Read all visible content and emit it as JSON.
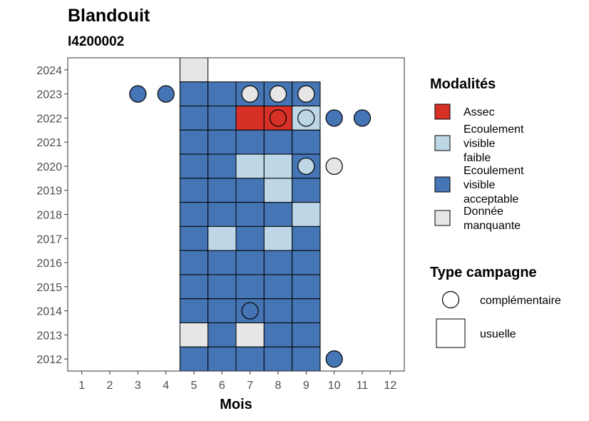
{
  "chart_data": {
    "type": "heatmap",
    "title": "Blandouit",
    "subtitle": "I4200002",
    "xlabel": "Mois",
    "ylabel": "",
    "x_ticks": [
      1,
      2,
      3,
      4,
      5,
      6,
      7,
      8,
      9,
      10,
      11,
      12
    ],
    "y_ticks": [
      2012,
      2013,
      2014,
      2015,
      2016,
      2017,
      2018,
      2019,
      2020,
      2021,
      2022,
      2023,
      2024
    ],
    "xlim": [
      0.5,
      12.5
    ],
    "ylim": [
      2011.5,
      2024.5
    ],
    "colors": {
      "assec": "#d73027",
      "faible": "#bdd7e7",
      "acceptable": "#4575b4",
      "manquante": "#e6e6e6"
    },
    "legend_modalites": {
      "title": "Modalités",
      "items": [
        {
          "key": "assec",
          "lines": [
            "Assec"
          ]
        },
        {
          "key": "faible",
          "lines": [
            "Ecoulement",
            "visible",
            "faible"
          ]
        },
        {
          "key": "acceptable",
          "lines": [
            "Ecoulement",
            "visible",
            "acceptable"
          ]
        },
        {
          "key": "manquante",
          "lines": [
            "Donnée",
            "manquante"
          ]
        }
      ]
    },
    "legend_campagne": {
      "title": "Type campagne",
      "items": [
        {
          "shape": "circle",
          "label": "complémentaire"
        },
        {
          "shape": "square",
          "label": "usuelle"
        }
      ]
    },
    "usuelle": [
      {
        "year": 2024,
        "month": 5,
        "status": "manquante"
      },
      {
        "year": 2023,
        "month": 5,
        "status": "acceptable"
      },
      {
        "year": 2023,
        "month": 6,
        "status": "acceptable"
      },
      {
        "year": 2023,
        "month": 7,
        "status": "acceptable"
      },
      {
        "year": 2023,
        "month": 8,
        "status": "acceptable"
      },
      {
        "year": 2023,
        "month": 9,
        "status": "acceptable"
      },
      {
        "year": 2022,
        "month": 5,
        "status": "acceptable"
      },
      {
        "year": 2022,
        "month": 6,
        "status": "acceptable"
      },
      {
        "year": 2022,
        "month": 7,
        "status": "assec"
      },
      {
        "year": 2022,
        "month": 8,
        "status": "assec"
      },
      {
        "year": 2022,
        "month": 9,
        "status": "faible"
      },
      {
        "year": 2021,
        "month": 5,
        "status": "acceptable"
      },
      {
        "year": 2021,
        "month": 6,
        "status": "acceptable"
      },
      {
        "year": 2021,
        "month": 7,
        "status": "acceptable"
      },
      {
        "year": 2021,
        "month": 8,
        "status": "acceptable"
      },
      {
        "year": 2021,
        "month": 9,
        "status": "acceptable"
      },
      {
        "year": 2020,
        "month": 5,
        "status": "acceptable"
      },
      {
        "year": 2020,
        "month": 6,
        "status": "acceptable"
      },
      {
        "year": 2020,
        "month": 7,
        "status": "faible"
      },
      {
        "year": 2020,
        "month": 8,
        "status": "faible"
      },
      {
        "year": 2020,
        "month": 9,
        "status": "acceptable"
      },
      {
        "year": 2019,
        "month": 5,
        "status": "acceptable"
      },
      {
        "year": 2019,
        "month": 6,
        "status": "acceptable"
      },
      {
        "year": 2019,
        "month": 7,
        "status": "acceptable"
      },
      {
        "year": 2019,
        "month": 8,
        "status": "faible"
      },
      {
        "year": 2019,
        "month": 9,
        "status": "acceptable"
      },
      {
        "year": 2018,
        "month": 5,
        "status": "acceptable"
      },
      {
        "year": 2018,
        "month": 6,
        "status": "acceptable"
      },
      {
        "year": 2018,
        "month": 7,
        "status": "acceptable"
      },
      {
        "year": 2018,
        "month": 8,
        "status": "acceptable"
      },
      {
        "year": 2018,
        "month": 9,
        "status": "faible"
      },
      {
        "year": 2017,
        "month": 5,
        "status": "acceptable"
      },
      {
        "year": 2017,
        "month": 6,
        "status": "faible"
      },
      {
        "year": 2017,
        "month": 7,
        "status": "acceptable"
      },
      {
        "year": 2017,
        "month": 8,
        "status": "faible"
      },
      {
        "year": 2017,
        "month": 9,
        "status": "acceptable"
      },
      {
        "year": 2016,
        "month": 5,
        "status": "acceptable"
      },
      {
        "year": 2016,
        "month": 6,
        "status": "acceptable"
      },
      {
        "year": 2016,
        "month": 7,
        "status": "acceptable"
      },
      {
        "year": 2016,
        "month": 8,
        "status": "acceptable"
      },
      {
        "year": 2016,
        "month": 9,
        "status": "acceptable"
      },
      {
        "year": 2015,
        "month": 5,
        "status": "acceptable"
      },
      {
        "year": 2015,
        "month": 6,
        "status": "acceptable"
      },
      {
        "year": 2015,
        "month": 7,
        "status": "acceptable"
      },
      {
        "year": 2015,
        "month": 8,
        "status": "acceptable"
      },
      {
        "year": 2015,
        "month": 9,
        "status": "acceptable"
      },
      {
        "year": 2014,
        "month": 5,
        "status": "acceptable"
      },
      {
        "year": 2014,
        "month": 6,
        "status": "acceptable"
      },
      {
        "year": 2014,
        "month": 7,
        "status": "acceptable"
      },
      {
        "year": 2014,
        "month": 8,
        "status": "acceptable"
      },
      {
        "year": 2014,
        "month": 9,
        "status": "acceptable"
      },
      {
        "year": 2013,
        "month": 5,
        "status": "manquante"
      },
      {
        "year": 2013,
        "month": 6,
        "status": "acceptable"
      },
      {
        "year": 2013,
        "month": 7,
        "status": "manquante"
      },
      {
        "year": 2013,
        "month": 8,
        "status": "acceptable"
      },
      {
        "year": 2013,
        "month": 9,
        "status": "acceptable"
      },
      {
        "year": 2012,
        "month": 5,
        "status": "acceptable"
      },
      {
        "year": 2012,
        "month": 6,
        "status": "acceptable"
      },
      {
        "year": 2012,
        "month": 7,
        "status": "acceptable"
      },
      {
        "year": 2012,
        "month": 8,
        "status": "acceptable"
      },
      {
        "year": 2012,
        "month": 9,
        "status": "acceptable"
      }
    ],
    "complementaire": [
      {
        "year": 2023,
        "month": 3,
        "status": "acceptable"
      },
      {
        "year": 2023,
        "month": 4,
        "status": "acceptable"
      },
      {
        "year": 2023,
        "month": 7,
        "status": "manquante"
      },
      {
        "year": 2023,
        "month": 8,
        "status": "manquante"
      },
      {
        "year": 2023,
        "month": 9,
        "status": "manquante"
      },
      {
        "year": 2022,
        "month": 8,
        "status": "assec"
      },
      {
        "year": 2022,
        "month": 9,
        "status": "faible"
      },
      {
        "year": 2022,
        "month": 10,
        "status": "acceptable"
      },
      {
        "year": 2022,
        "month": 11,
        "status": "acceptable"
      },
      {
        "year": 2020,
        "month": 9,
        "status": "faible"
      },
      {
        "year": 2020,
        "month": 10,
        "status": "manquante"
      },
      {
        "year": 2014,
        "month": 7,
        "status": "acceptable"
      },
      {
        "year": 2012,
        "month": 10,
        "status": "acceptable"
      }
    ]
  }
}
